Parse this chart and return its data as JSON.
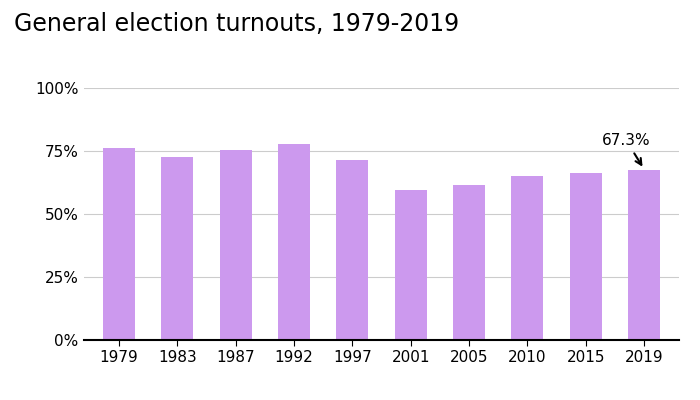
{
  "title": "General election turnouts, 1979-2019",
  "categories": [
    "1979",
    "1983",
    "1987",
    "1992",
    "1997",
    "2001",
    "2005",
    "2010",
    "2015",
    "2019"
  ],
  "values": [
    76.0,
    72.7,
    75.3,
    77.7,
    71.4,
    59.4,
    61.4,
    65.1,
    66.1,
    67.3
  ],
  "bar_color": "#cc99ee",
  "annotation_text": "67.3%",
  "annotation_index": 9,
  "ylim": [
    0,
    100
  ],
  "yticks": [
    0,
    25,
    50,
    75,
    100
  ],
  "ytick_labels": [
    "0%",
    "25%",
    "50%",
    "75%",
    "100%"
  ],
  "background_color": "#ffffff",
  "title_fontsize": 17,
  "tick_fontsize": 11,
  "grid_color": "#cccccc",
  "bar_width": 0.55
}
